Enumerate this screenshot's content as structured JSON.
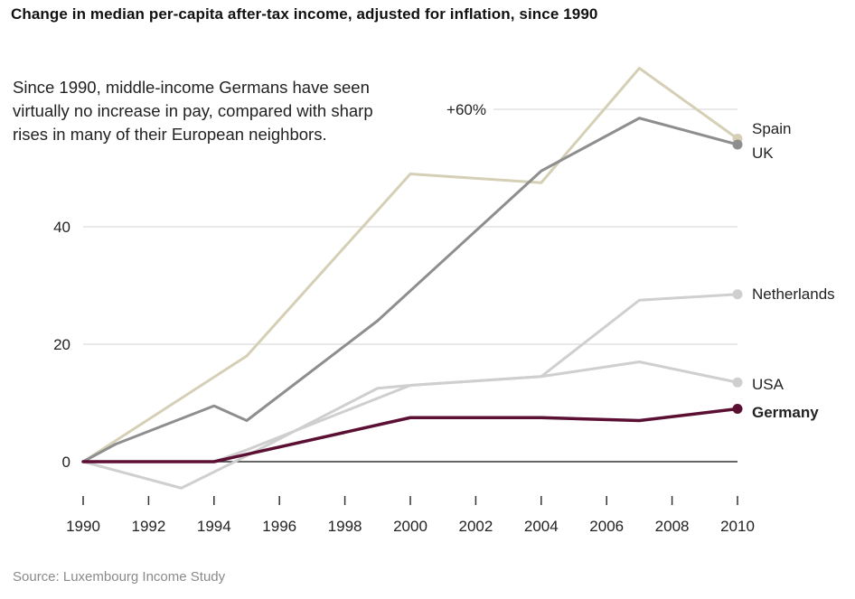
{
  "chart_data": {
    "type": "line",
    "title": "Change in median per-capita after-tax income, adjusted for inflation, since 1990",
    "annotation": "Since 1990, middle-income Germans have seen virtually no increase in pay, compared with sharp rises in many of their European neighbors.",
    "source": "Source: Luxembourg Income Study",
    "xlim": [
      1990,
      2010
    ],
    "ylim": [
      -5,
      67
    ],
    "x_ticks": [
      "1990",
      "1992",
      "1994",
      "1996",
      "1998",
      "2000",
      "2002",
      "2004",
      "2006",
      "2008",
      "2010"
    ],
    "y_ticks": [
      {
        "value": 0,
        "label": "0"
      },
      {
        "value": 20,
        "label": "20"
      },
      {
        "value": 40,
        "label": "40"
      },
      {
        "value": 60,
        "label": "+60%"
      }
    ],
    "grid": true,
    "legend": "direct labels at line ends (right)",
    "series": [
      {
        "name": "Spain",
        "color": "#d5cfb6",
        "width": 3,
        "end_dot": true,
        "bold": false,
        "x": [
          1990,
          1995,
          2000,
          2004,
          2007,
          2010
        ],
        "y": [
          0,
          18,
          49,
          47.5,
          67,
          55
        ]
      },
      {
        "name": "UK",
        "color": "#8e8e8e",
        "width": 3,
        "end_dot": true,
        "bold": false,
        "x": [
          1990,
          1991,
          1994,
          1995,
          1999,
          2004,
          2007,
          2010
        ],
        "y": [
          0,
          3,
          9.5,
          7,
          24,
          49.5,
          58.5,
          54
        ]
      },
      {
        "name": "Netherlands",
        "color": "#cfcfcf",
        "width": 3,
        "end_dot": true,
        "bold": false,
        "x": [
          1990,
          1994,
          1995,
          2000,
          2004,
          2007,
          2010
        ],
        "y": [
          0,
          0,
          2,
          13,
          14.5,
          27.5,
          28.5
        ]
      },
      {
        "name": "USA",
        "color": "#cfcfcf",
        "width": 3,
        "end_dot": true,
        "bold": false,
        "x": [
          1990,
          1993,
          1995,
          1999,
          2000,
          2004,
          2007,
          2010
        ],
        "y": [
          0,
          -4.5,
          1,
          12.5,
          13,
          14.5,
          17,
          13.5
        ]
      },
      {
        "name": "Germany",
        "color": "#5b0f32",
        "width": 3.5,
        "end_dot": true,
        "bold": true,
        "x": [
          1990,
          1994,
          2000,
          2004,
          2007,
          2010
        ],
        "y": [
          0,
          0,
          7.5,
          7.5,
          7,
          9
        ]
      }
    ]
  }
}
